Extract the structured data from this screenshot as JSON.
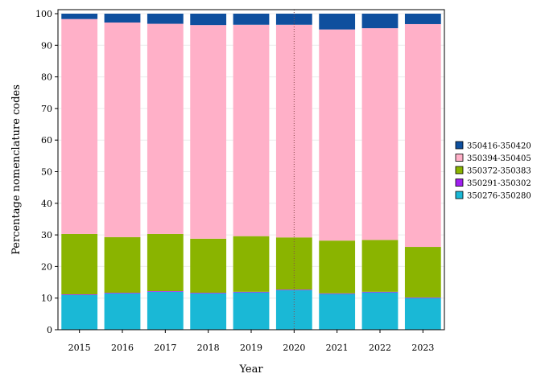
{
  "chart_data": {
    "type": "bar",
    "stacked": true,
    "title": "",
    "xlabel": "Year",
    "ylabel": "Percentage nomenclature codes",
    "ylim": [
      0,
      100
    ],
    "yticks": [
      0,
      10,
      20,
      30,
      40,
      50,
      60,
      70,
      80,
      90,
      100
    ],
    "grid": true,
    "legend_position": "right",
    "reference_line": {
      "x": "2020",
      "style": "dotted",
      "color": "#8b4a4a"
    },
    "categories": [
      "2015",
      "2016",
      "2017",
      "2018",
      "2019",
      "2020",
      "2021",
      "2022",
      "2023"
    ],
    "series": [
      {
        "name": "350276-350280",
        "color": "#1ab8d6",
        "values": [
          11.0,
          11.5,
          12.0,
          11.5,
          11.8,
          12.5,
          11.3,
          11.8,
          10.0
        ]
      },
      {
        "name": "350291-350302",
        "color": "#a020f0",
        "values": [
          0.2,
          0.2,
          0.2,
          0.2,
          0.2,
          0.2,
          0.2,
          0.2,
          0.2
        ]
      },
      {
        "name": "350372-350383",
        "color": "#8ab400",
        "values": [
          19.1,
          17.6,
          18.1,
          17.1,
          17.6,
          16.5,
          16.7,
          16.4,
          16.0
        ]
      },
      {
        "name": "350394-350405",
        "color": "#ffb0c8",
        "values": [
          68.0,
          67.9,
          66.5,
          67.6,
          66.9,
          67.3,
          66.8,
          67.0,
          70.5
        ]
      },
      {
        "name": "350416-350420",
        "color": "#0e4f9e",
        "values": [
          1.7,
          2.8,
          3.2,
          3.6,
          3.5,
          3.5,
          5.0,
          4.6,
          3.3
        ]
      }
    ]
  }
}
